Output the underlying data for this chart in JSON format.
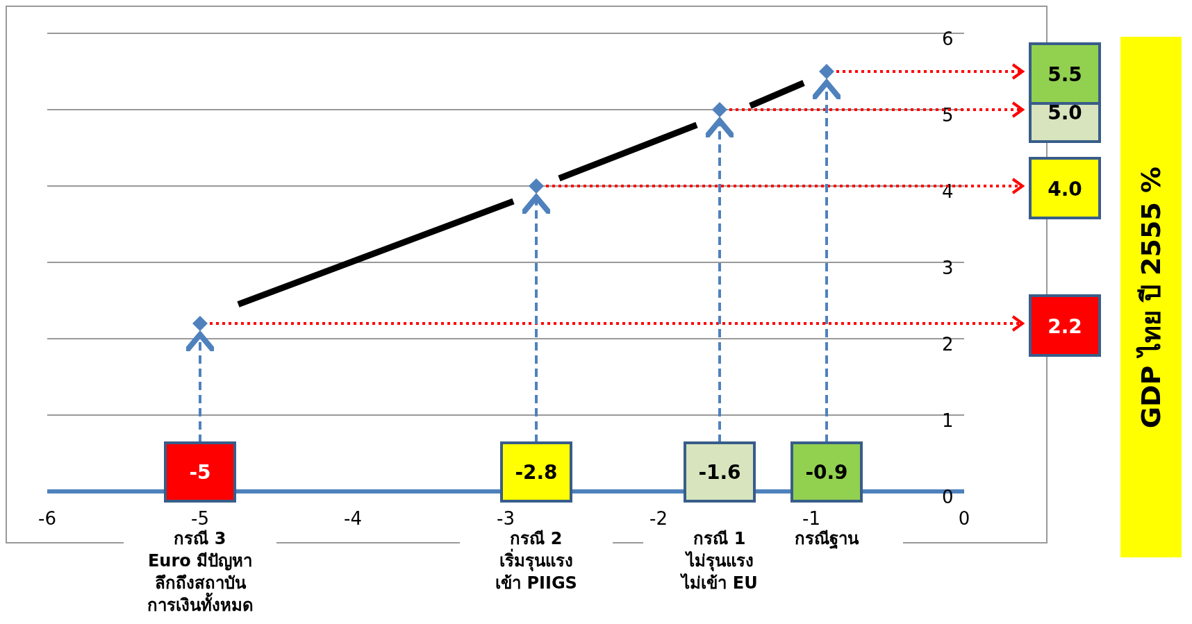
{
  "chart_data": {
    "type": "scatter",
    "xlim": [
      -6,
      0
    ],
    "xticks": [
      -6,
      -5,
      -4,
      -3,
      -2,
      -1,
      0
    ],
    "ylim": [
      0,
      6
    ],
    "yticks": [
      0,
      1,
      2,
      3,
      4,
      5,
      6
    ],
    "grid": "y",
    "series": [
      {
        "color": "#4f81bd",
        "marker": "diamond",
        "x": [
          -5,
          -2.8,
          -1.6,
          -0.9
        ],
        "values": [
          2.2,
          4.0,
          5.0,
          5.5
        ]
      },
      {
        "type": "line",
        "color": "#000000",
        "x": [
          -4.75,
          -2.95,
          -2.85,
          -2.65,
          -1.75,
          -1.6,
          -1.4,
          -1.05
        ],
        "values": [
          2.45,
          3.8,
          null,
          4.1,
          4.8,
          null,
          5.05,
          5.35
        ]
      }
    ],
    "ref_lines": [
      {
        "axis": "y",
        "value": 2.2,
        "label": "2.2",
        "color": "#ff0000",
        "line_style": "dotted"
      },
      {
        "axis": "y",
        "value": 4.0,
        "label": "4.0",
        "color": "#ff0000",
        "line_style": "dotted"
      },
      {
        "axis": "y",
        "value": 5.0,
        "label": "5.0",
        "color": "#ff0000",
        "line_style": "dotted"
      },
      {
        "axis": "y",
        "value": 5.5,
        "label": "5.5",
        "color": "#ff0000",
        "line_style": "dotted"
      }
    ],
    "annotations": [
      "-5",
      "-2.8",
      "-1.6",
      "-0.9",
      "กรณี 3\nEuro มีปัญหา\nลึกถึงสถาบัน\nการเงินทั้งหมด",
      "กรณี 2\nเริ่มรุนแรง\nเข้า PIIGS",
      "กรณี 1\nไม่รุนแรง\nไม่เข้า EU",
      "กรณีฐาน",
      "GDP ไทย ปี 2555 %"
    ]
  }
}
